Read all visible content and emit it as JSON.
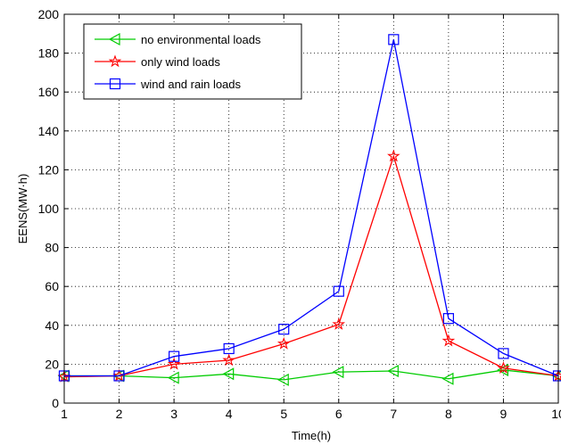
{
  "chart_data": {
    "type": "line",
    "title": "",
    "xlabel": "Time(h)",
    "ylabel": "EENS(MW·h)",
    "xlim": [
      1,
      10
    ],
    "ylim": [
      0,
      200
    ],
    "xticks": [
      1,
      2,
      3,
      4,
      5,
      6,
      7,
      8,
      9,
      10
    ],
    "yticks": [
      0,
      20,
      40,
      60,
      80,
      100,
      120,
      140,
      160,
      180,
      200
    ],
    "xtick_labels": [
      "1",
      "2",
      "3",
      "4",
      "5",
      "6",
      "7",
      "8",
      "9",
      "10"
    ],
    "ytick_labels": [
      "0",
      "20",
      "40",
      "60",
      "80",
      "100",
      "120",
      "140",
      "160",
      "180",
      "200"
    ],
    "grid": true,
    "legend_position": "top-left",
    "x": [
      1,
      2,
      3,
      4,
      5,
      6,
      7,
      8,
      9,
      10
    ],
    "series": [
      {
        "name": "no environmental loads",
        "color": "#00cc00",
        "marker": "triangle-left",
        "values": [
          14,
          14,
          13,
          15,
          12,
          16,
          16.5,
          12.5,
          17,
          14
        ]
      },
      {
        "name": "only wind loads",
        "color": "#ff0000",
        "marker": "star",
        "values": [
          13.5,
          14,
          20,
          22,
          30.5,
          40.5,
          127,
          32,
          18,
          14
        ]
      },
      {
        "name": "wind and rain loads",
        "color": "#0000ff",
        "marker": "square",
        "values": [
          14,
          14,
          24,
          28,
          38,
          57.5,
          187,
          43.5,
          25.5,
          14
        ]
      }
    ]
  }
}
